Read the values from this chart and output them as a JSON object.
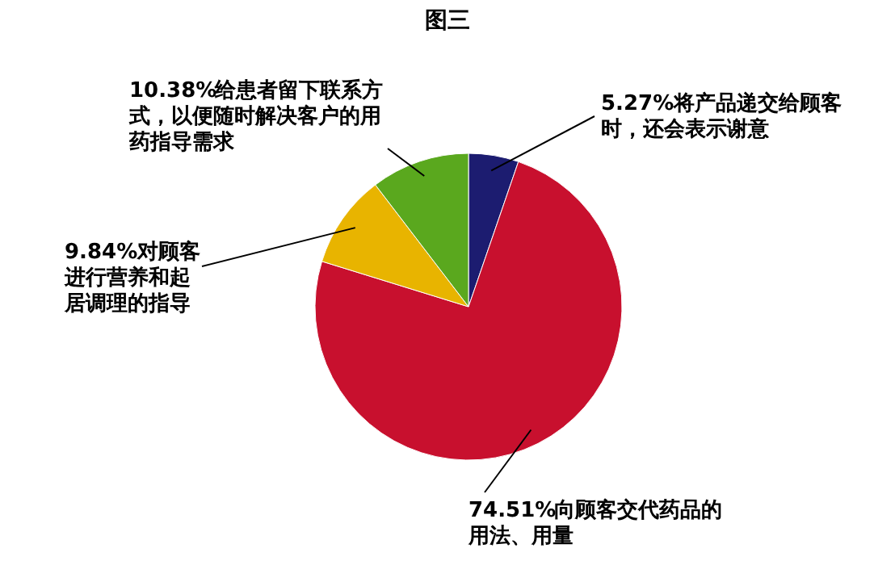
{
  "chart_data": {
    "type": "pie",
    "title": "图三",
    "categories": [
      "将产品递交给顾客时，还会表示谢意",
      "向顾客交代药品的用法、用量",
      "对顾客进行营养和起居调理的指导",
      "给患者留下联系方式，以便随时解决客户的用药指导需求"
    ],
    "values": [
      5.27,
      74.51,
      9.84,
      10.38
    ],
    "colors": [
      "#1c1c70",
      "#c8102e",
      "#e8b400",
      "#5aa81e"
    ],
    "value_labels": [
      "5.27%",
      "74.51%",
      "9.84%",
      "10.38%"
    ],
    "legend": false
  }
}
